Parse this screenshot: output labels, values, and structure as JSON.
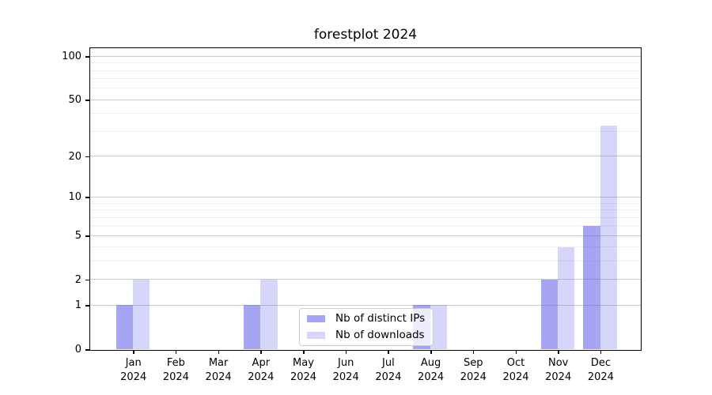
{
  "title": "forestplot 2024",
  "legend": {
    "items": [
      {
        "label": "Nb of distinct IPs",
        "color_key": "ips_bar"
      },
      {
        "label": "Nb of downloads",
        "color_key": "downloads_bar"
      }
    ]
  },
  "colors": {
    "ips_bar": "rgba(97,97,234,0.57)",
    "downloads_bar": "rgba(97,97,234,0.26)",
    "major_grid": "#cbcbcb",
    "minor_grid": "#efefef",
    "axis": "#000000",
    "legend_border": "#cccccc"
  },
  "chart_data": {
    "type": "bar",
    "title": "forestplot 2024",
    "categories": [
      "Jan 2024",
      "Feb 2024",
      "Mar 2024",
      "Apr 2024",
      "May 2024",
      "Jun 2024",
      "Jul 2024",
      "Aug 2024",
      "Sep 2024",
      "Oct 2024",
      "Nov 2024",
      "Dec 2024"
    ],
    "series": [
      {
        "name": "Nb of distinct IPs",
        "values": [
          1,
          0,
          0,
          1,
          0,
          0,
          0,
          1,
          0,
          0,
          2,
          6
        ]
      },
      {
        "name": "Nb of downloads",
        "values": [
          2,
          0,
          0,
          2,
          0,
          0,
          0,
          1,
          0,
          0,
          4,
          33
        ]
      }
    ],
    "yscale": "log1p",
    "ylim": [
      0,
      114
    ],
    "ytick_values": [
      0,
      1,
      2,
      5,
      10,
      20,
      50,
      100
    ],
    "ytick_labels": [
      "0",
      "1",
      "2",
      "5",
      "10",
      "20",
      "50",
      "100"
    ],
    "minor_ytick_values": [
      3,
      4,
      6,
      7,
      8,
      9,
      30,
      40,
      60,
      70,
      80,
      90
    ],
    "grid": "horizontal",
    "legend_position": "inside-bottom-center"
  }
}
